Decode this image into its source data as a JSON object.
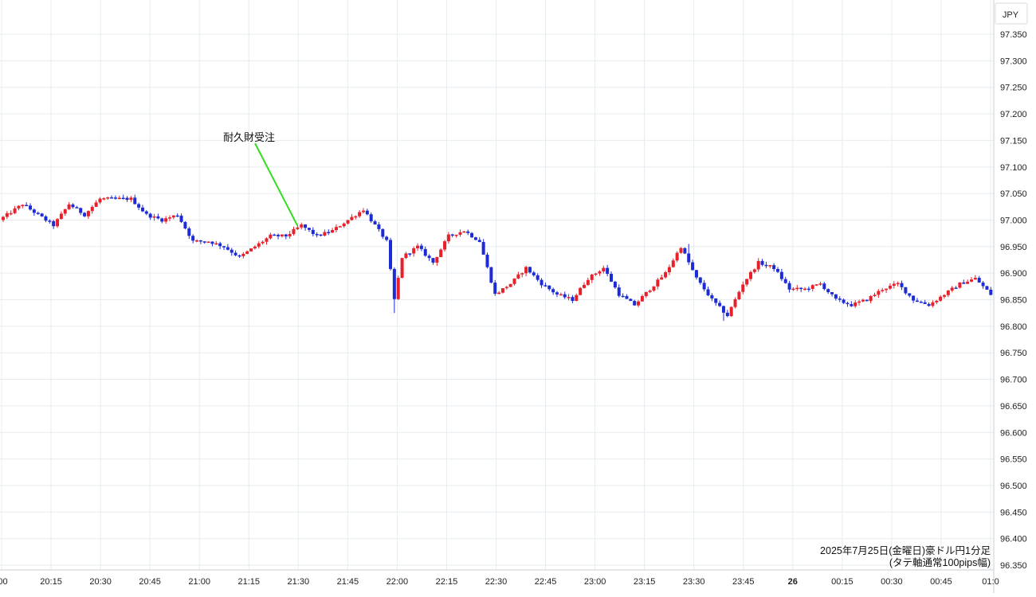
{
  "currency_label": "JPY",
  "chart_data": {
    "type": "candlestick",
    "ylim": [
      96.33,
      97.39
    ],
    "y_ticks": [
      "97.350",
      "97.300",
      "97.250",
      "97.200",
      "97.150",
      "97.100",
      "97.050",
      "97.000",
      "96.950",
      "96.900",
      "96.850",
      "96.800",
      "96.750",
      "96.700",
      "96.650",
      "96.600",
      "96.550",
      "96.500",
      "96.450",
      "96.400",
      "96.350"
    ],
    "x_ticks": [
      ":00",
      "20:15",
      "20:30",
      "20:45",
      "21:00",
      "21:15",
      "21:30",
      "21:45",
      "22:00",
      "22:15",
      "22:30",
      "22:45",
      "23:00",
      "23:15",
      "23:30",
      "23:45",
      "26",
      "00:15",
      "00:30",
      "00:45",
      "01:0"
    ],
    "grid": true,
    "colors": {
      "up": "#e8202a",
      "down": "#1c2bd6",
      "grid": "#e6ecef",
      "annotation_line": "#33dd22"
    },
    "annotation": {
      "text": "耐久財受注"
    },
    "info_lines": [
      "2025年7月25日(金曜日)豪ドル円1分足",
      "(タテ軸通常100pips幅)"
    ],
    "price_path": [
      [
        0,
        97.0
      ],
      [
        6,
        97.03
      ],
      [
        10,
        97.01
      ],
      [
        14,
        96.99
      ],
      [
        18,
        97.03
      ],
      [
        22,
        97.01
      ],
      [
        26,
        97.04
      ],
      [
        30,
        97.04
      ],
      [
        34,
        97.04
      ],
      [
        38,
        97.01
      ],
      [
        42,
        97.0
      ],
      [
        46,
        97.01
      ],
      [
        50,
        96.96
      ],
      [
        54,
        96.96
      ],
      [
        58,
        96.95
      ],
      [
        62,
        96.93
      ],
      [
        66,
        96.95
      ],
      [
        70,
        96.97
      ],
      [
        74,
        96.97
      ],
      [
        78,
        96.99
      ],
      [
        82,
        96.97
      ],
      [
        86,
        96.98
      ],
      [
        90,
        97.0
      ],
      [
        94,
        97.02
      ],
      [
        98,
        96.98
      ],
      [
        100,
        96.96
      ],
      [
        102,
        96.85
      ],
      [
        104,
        96.93
      ],
      [
        108,
        96.95
      ],
      [
        112,
        96.92
      ],
      [
        116,
        96.97
      ],
      [
        120,
        96.98
      ],
      [
        124,
        96.96
      ],
      [
        128,
        96.86
      ],
      [
        132,
        96.88
      ],
      [
        136,
        96.91
      ],
      [
        140,
        96.88
      ],
      [
        144,
        96.86
      ],
      [
        148,
        96.85
      ],
      [
        152,
        96.89
      ],
      [
        156,
        96.91
      ],
      [
        160,
        96.86
      ],
      [
        164,
        96.84
      ],
      [
        168,
        96.87
      ],
      [
        172,
        96.9
      ],
      [
        176,
        96.95
      ],
      [
        178,
        96.92
      ],
      [
        180,
        96.89
      ],
      [
        184,
        96.85
      ],
      [
        188,
        96.82
      ],
      [
        192,
        96.88
      ],
      [
        196,
        96.92
      ],
      [
        200,
        96.91
      ],
      [
        204,
        96.87
      ],
      [
        208,
        96.87
      ],
      [
        212,
        96.88
      ],
      [
        216,
        96.85
      ],
      [
        220,
        96.84
      ],
      [
        224,
        96.85
      ],
      [
        228,
        96.87
      ],
      [
        232,
        96.88
      ],
      [
        236,
        96.85
      ],
      [
        240,
        96.84
      ],
      [
        244,
        96.86
      ],
      [
        248,
        96.88
      ],
      [
        252,
        96.89
      ],
      [
        256,
        96.86
      ]
    ]
  }
}
